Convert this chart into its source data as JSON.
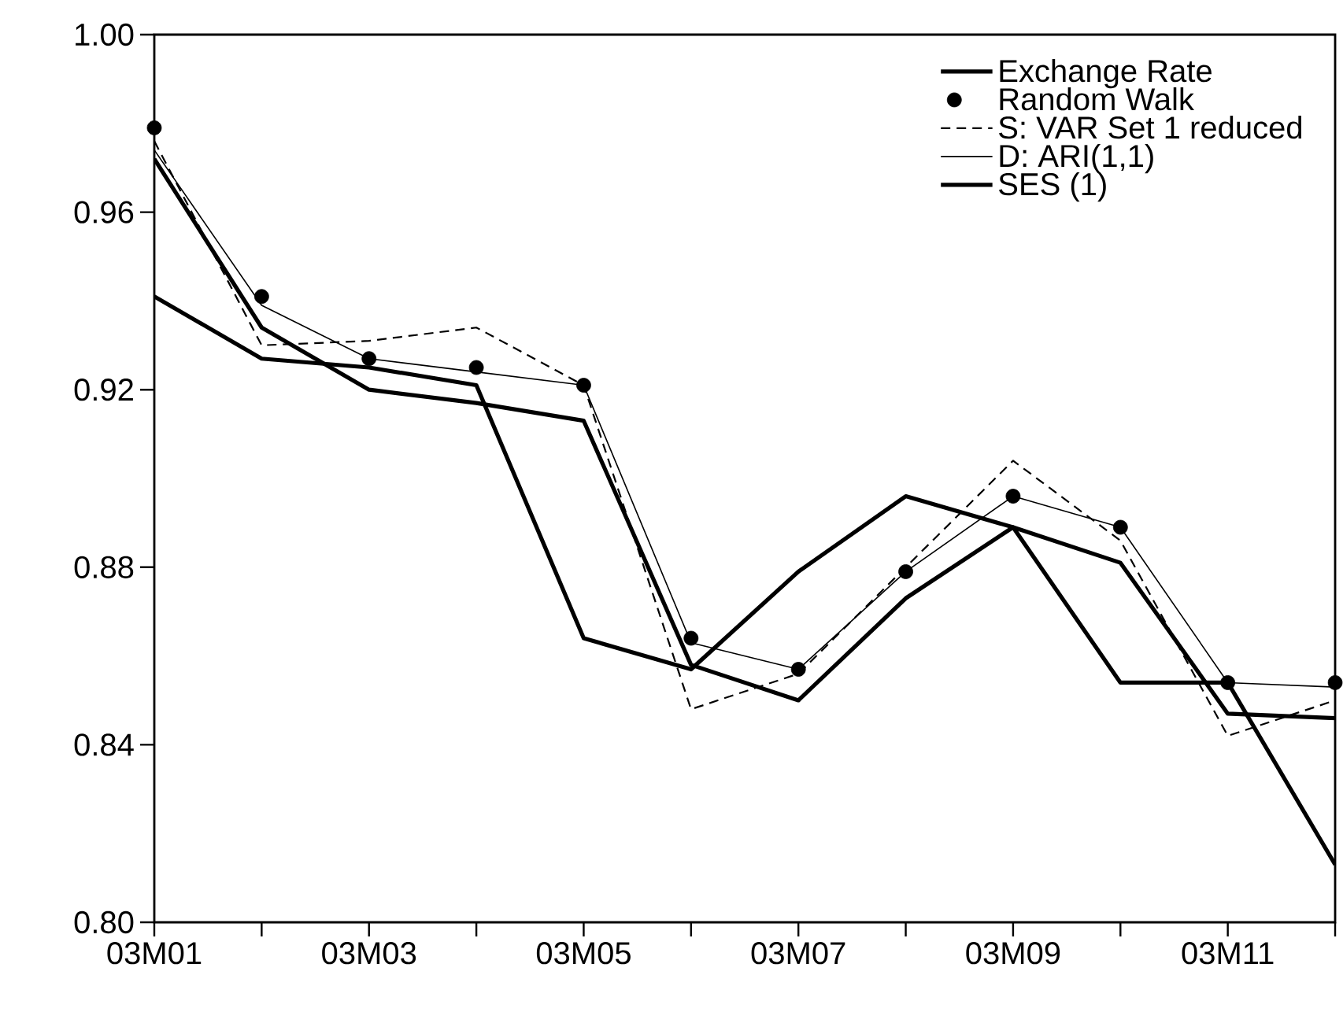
{
  "chart_data": {
    "type": "line",
    "categories": [
      "03M01",
      null,
      "03M03",
      null,
      "03M05",
      null,
      "03M07",
      null,
      "03M09",
      null,
      "03M11",
      null
    ],
    "series": [
      {
        "name": "Exchange Rate",
        "color": "#000000",
        "line_style": "solid",
        "marker": "none",
        "values": [
          0.941,
          0.927,
          0.925,
          0.921,
          0.864,
          0.857,
          0.879,
          0.896,
          0.889,
          0.854,
          0.854,
          0.813
        ]
      },
      {
        "name": "Random Walk",
        "type": "scatter",
        "color": "#000000",
        "marker": "circle",
        "values": [
          0.979,
          0.941,
          0.927,
          0.925,
          0.921,
          0.864,
          0.857,
          0.879,
          0.896,
          0.889,
          0.854,
          0.854
        ]
      },
      {
        "name": "S: VAR Set 1 reduced",
        "color": "#000000",
        "line_style": "dashed",
        "marker": "none",
        "values": [
          0.976,
          0.93,
          0.931,
          0.934,
          0.921,
          0.848,
          0.856,
          0.88,
          0.904,
          0.886,
          0.842,
          0.85
        ]
      },
      {
        "name": "D: ARI(1,1)",
        "color": "#000000",
        "line_style": "solid",
        "marker": "none",
        "values": [
          0.974,
          0.939,
          0.927,
          0.924,
          0.921,
          0.863,
          0.857,
          0.879,
          0.896,
          0.889,
          0.854,
          0.853
        ]
      },
      {
        "name": "SES (1)",
        "color": "#000000",
        "line_style": "solid",
        "marker": "none",
        "values": [
          0.972,
          0.934,
          0.92,
          0.917,
          0.913,
          0.858,
          0.85,
          0.873,
          0.889,
          0.881,
          0.847,
          0.846
        ]
      }
    ],
    "ylim": [
      0.8,
      1.0
    ],
    "yticks": [
      {
        "value": 0.8,
        "label": "0.80"
      },
      {
        "value": 0.84,
        "label": "0.84"
      },
      {
        "value": 0.88,
        "label": "0.88"
      },
      {
        "value": 0.92,
        "label": "0.92"
      },
      {
        "value": 0.96,
        "label": "0.96"
      },
      {
        "value": 1.0,
        "label": "1.00"
      }
    ],
    "grid": false,
    "legend": "top right"
  }
}
